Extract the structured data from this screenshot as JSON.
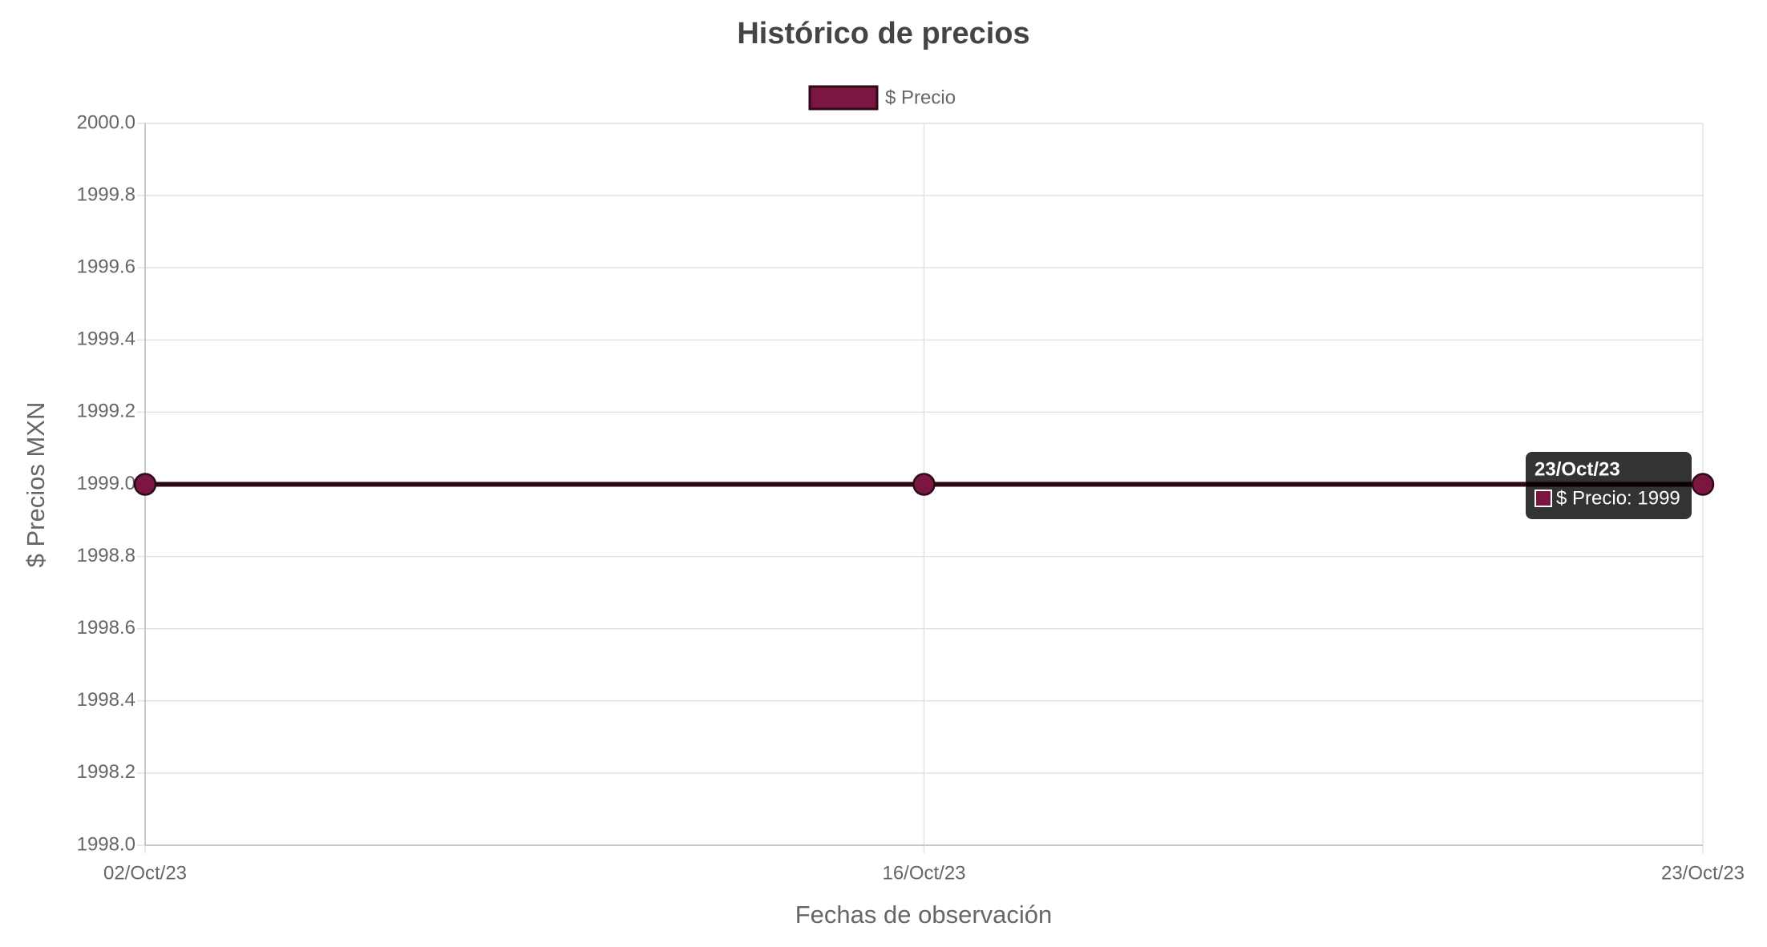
{
  "chart_data": {
    "type": "line",
    "title": "Histórico de precios",
    "x_label": "Fechas de observación",
    "y_label": "$ Precios MXN",
    "categories": [
      "02/Oct/23",
      "16/Oct/23",
      "23/Oct/23"
    ],
    "series": [
      {
        "name": "$ Precio",
        "color": "#7b1640",
        "line_color": "#2e0a18",
        "values": [
          1999,
          1999,
          1999
        ]
      }
    ],
    "ylim": [
      1998,
      2000
    ],
    "yticks": [
      {
        "value": 1998,
        "label": "1998.0"
      },
      {
        "value": 1998.2,
        "label": "1998.2"
      },
      {
        "value": 1998.4,
        "label": "1998.4"
      },
      {
        "value": 1998.6,
        "label": "1998.6"
      },
      {
        "value": 1998.8,
        "label": "1998.8"
      },
      {
        "value": 1999,
        "label": "1999.0"
      },
      {
        "value": 1999.2,
        "label": "1999.2"
      },
      {
        "value": 1999.4,
        "label": "1999.4"
      },
      {
        "value": 1999.6,
        "label": "1999.6"
      },
      {
        "value": 1999.8,
        "label": "1999.8"
      },
      {
        "value": 2000,
        "label": "2000.0"
      }
    ],
    "grid": true,
    "legend": "top",
    "tooltip": {
      "title": "23/Oct/23",
      "body": "$ Precio: 1999"
    }
  }
}
